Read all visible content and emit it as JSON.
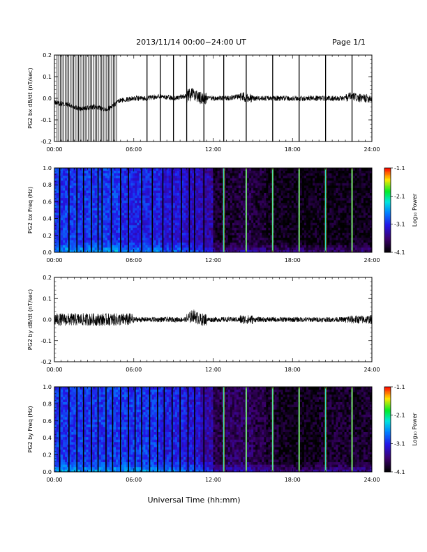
{
  "header": {
    "title": "2013/11/14  00:00−24:00 UT",
    "page": "Page 1/1"
  },
  "footer": {
    "xlabel": "Universal Time (hh:mm)"
  },
  "colorbar": {
    "label": "Log₁₀ Power",
    "ticks": [
      "-1.1",
      "-2.1",
      "-3.1",
      "-4.1"
    ]
  },
  "chart_data": [
    {
      "type": "line",
      "ylabel": "PG2 bx dB/dt (nT/sec)",
      "xlim": [
        0,
        24
      ],
      "ylim": [
        -0.2,
        0.2
      ],
      "yticks": [
        "0.2",
        "0.1",
        "0.0",
        "-0.1",
        "-0.2"
      ],
      "xticks": [
        "00:00",
        "06:00",
        "12:00",
        "18:00",
        "24:00"
      ],
      "series": [
        {
          "x": [
            0,
            1,
            2,
            3,
            4,
            5,
            6,
            7,
            8,
            9,
            10,
            10.5,
            11,
            12,
            13,
            14,
            15,
            16,
            17,
            18,
            19,
            20,
            21,
            22,
            22.5,
            23,
            24
          ],
          "y": [
            -0.02,
            -0.03,
            -0.05,
            -0.04,
            -0.05,
            -0.01,
            0.0,
            0.0,
            0.01,
            0.0,
            0.01,
            0.02,
            0.0,
            0.0,
            0.0,
            0.01,
            0.0,
            0.0,
            0.0,
            0.0,
            0.0,
            0.0,
            0.0,
            0.0,
            0.01,
            0.0,
            0.0
          ]
        }
      ],
      "spikes_hours": [
        7.0,
        8.0,
        9.0,
        10.0,
        11.3,
        12.8,
        14.5,
        16.5,
        18.5,
        20.5,
        22.5
      ]
    },
    {
      "type": "heatmap",
      "ylabel": "PG2 bx Freq (Hz)",
      "xlim": [
        0,
        24
      ],
      "ylim": [
        0.0,
        1.0
      ],
      "zlim": [
        -4.1,
        -1.1
      ],
      "yticks": [
        "1.0",
        "0.8",
        "0.6",
        "0.4",
        "0.2",
        "0.0"
      ],
      "xticks": [
        "00:00",
        "06:00",
        "12:00",
        "18:00",
        "24:00"
      ],
      "level_by_hour": [
        -3.0,
        -3.0,
        -3.0,
        -3.0,
        -3.0,
        -3.1,
        -3.1,
        -3.1,
        -3.2,
        -3.2,
        -3.3,
        -3.4,
        -3.9,
        -3.9,
        -3.8,
        -3.9,
        -4.0,
        -4.0,
        -4.0,
        -4.0,
        -4.0,
        -4.0,
        -4.0,
        -4.0
      ],
      "vertical_lines_hours": [
        0.4,
        1.1,
        1.7,
        2.2,
        2.8,
        3.3,
        3.6,
        4.3,
        5.0,
        5.6,
        6.6,
        7.4,
        8.2,
        8.9,
        9.6,
        10.2,
        10.6,
        11.3,
        12.8,
        14.5,
        16.5,
        18.5,
        20.5,
        22.5
      ]
    },
    {
      "type": "line",
      "ylabel": "PG2 by dB/dt (nT/sec)",
      "xlim": [
        0,
        24
      ],
      "ylim": [
        -0.2,
        0.2
      ],
      "yticks": [
        "0.2",
        "0.1",
        "0.0",
        "-0.1",
        "-0.2"
      ],
      "xticks": [
        "00:00",
        "06:00",
        "12:00",
        "18:00",
        "24:00"
      ],
      "series": [
        {
          "x": [
            0,
            1,
            2,
            3,
            4,
            5,
            6,
            7,
            8,
            9,
            10,
            10.5,
            11,
            12,
            13,
            14,
            15,
            16,
            17,
            18,
            19,
            20,
            21,
            22,
            23,
            24
          ],
          "y": [
            0.0,
            0.0,
            0.0,
            0.0,
            0.0,
            0.0,
            0.0,
            0.0,
            0.0,
            0.0,
            0.0,
            0.02,
            0.0,
            0.0,
            0.0,
            0.0,
            0.0,
            0.0,
            0.0,
            0.0,
            0.0,
            0.0,
            0.0,
            0.0,
            0.0,
            0.0
          ]
        }
      ]
    },
    {
      "type": "heatmap",
      "ylabel": "PG2 by Freq (Hz)",
      "xlim": [
        0,
        24
      ],
      "ylim": [
        0.0,
        1.0
      ],
      "zlim": [
        -4.1,
        -1.1
      ],
      "yticks": [
        "1.0",
        "0.8",
        "0.6",
        "0.4",
        "0.2",
        "0.0"
      ],
      "xticks": [
        "00:00",
        "06:00",
        "12:00",
        "18:00",
        "24:00"
      ],
      "level_by_hour": [
        -3.0,
        -3.0,
        -3.0,
        -3.0,
        -3.0,
        -3.0,
        -3.0,
        -3.0,
        -3.1,
        -3.1,
        -3.2,
        -3.4,
        -3.8,
        -3.7,
        -3.7,
        -3.8,
        -3.9,
        -4.0,
        -4.0,
        -4.0,
        -3.9,
        -3.9,
        -3.9,
        -3.9
      ],
      "vertical_lines_hours": [
        0.4,
        1.1,
        1.7,
        2.2,
        2.8,
        3.3,
        3.9,
        4.4,
        5.0,
        5.6,
        6.1,
        6.6,
        7.2,
        7.8,
        8.3,
        8.9,
        9.5,
        10.1,
        10.6,
        11.3,
        12.8,
        14.5,
        16.5,
        18.5,
        20.5,
        22.5
      ]
    }
  ]
}
